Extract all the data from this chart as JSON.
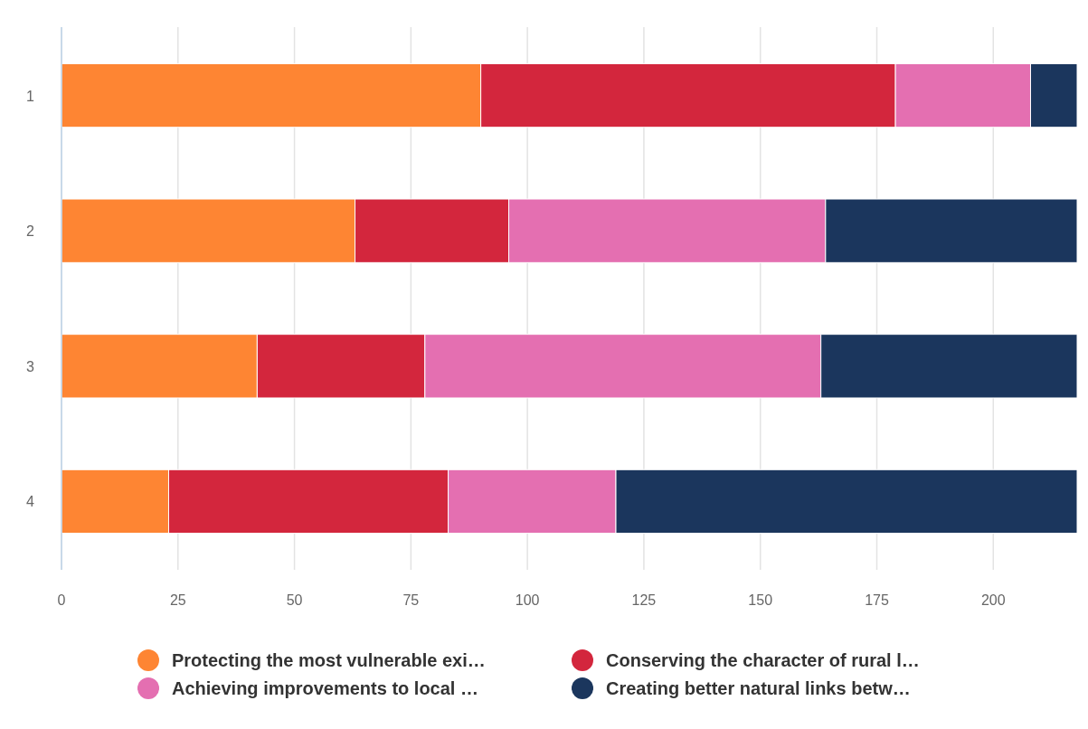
{
  "chart_data": {
    "type": "bar",
    "orientation": "horizontal",
    "stacked": true,
    "categories": [
      "1",
      "2",
      "3",
      "4"
    ],
    "series": [
      {
        "name": "Protecting the most vulnerable exi…",
        "color": "#fe8533",
        "values": [
          90,
          63,
          42,
          23
        ]
      },
      {
        "name": "Conserving the character of rural l…",
        "color": "#d3263d",
        "values": [
          89,
          33,
          36,
          60
        ]
      },
      {
        "name": "Achieving improvements to local …",
        "color": "#e46fb1",
        "values": [
          29,
          68,
          85,
          36
        ]
      },
      {
        "name": "Creating better natural links betw…",
        "color": "#1b365d",
        "values": [
          10,
          54,
          55,
          99
        ]
      }
    ],
    "xlim": [
      0,
      218
    ],
    "xticks": [
      0,
      25,
      50,
      75,
      100,
      125,
      150,
      175,
      200
    ],
    "grid": "x",
    "legend": "bottom"
  }
}
